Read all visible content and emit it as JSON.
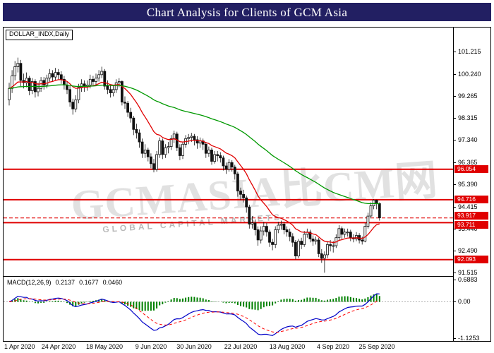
{
  "title": "Chart Analysis for Clients of GCM Asia",
  "watermark": {
    "text": "GCMASIA比CM网",
    "subtext": "GLOBAL CAPITAL MARKETS"
  },
  "colors": {
    "titlebar_bg": "#221f62",
    "level_red": "#e00000",
    "ma_fast_red": "#e00000",
    "ma_slow_green": "#009900",
    "macd_line_blue": "#0000c8",
    "signal_line_red": "#ff0000",
    "histogram_green": "#008000",
    "candle_up_fill": "#ffffff",
    "candle_down_fill": "#111111",
    "candle_border": "#111111"
  },
  "chart_data": {
    "type": "candlestick",
    "symbol_label": "DOLLAR_INDX,Daily",
    "symbol": "DOLLAR_INDX",
    "timeframe": "Daily",
    "ylim": [
      91.37,
      102.27
    ],
    "price_ticks": [
      101.215,
      100.24,
      99.265,
      98.315,
      97.34,
      96.365,
      95.39,
      94.415,
      93.44,
      92.49,
      91.515
    ],
    "price_tick_labels": [
      "101.215",
      "100.240",
      "99.265",
      "98.315",
      "97.340",
      "96.365",
      "95.390",
      "94.415",
      "93.440",
      "92.490",
      "91.515"
    ],
    "levels": [
      {
        "value": 96.054,
        "label": "96.054",
        "style": "solid",
        "role": "resistance"
      },
      {
        "value": 94.716,
        "label": "94.716",
        "style": "solid",
        "role": "resistance"
      },
      {
        "value": 93.917,
        "label": "93.917",
        "style": "dashed",
        "role": "current-price"
      },
      {
        "value": 93.711,
        "label": "93.711",
        "style": "solid",
        "role": "support"
      },
      {
        "value": 92.093,
        "label": "92.093",
        "style": "solid",
        "role": "support"
      }
    ],
    "date_ticks": [
      {
        "label": "1 Apr 2020",
        "bar": 0
      },
      {
        "label": "24 Apr 2020",
        "bar": 17
      },
      {
        "label": "18 May 2020",
        "bar": 33
      },
      {
        "label": "9 Jun 2020",
        "bar": 49
      },
      {
        "label": "30 Jun 2020",
        "bar": 64
      },
      {
        "label": "22 Jul 2020",
        "bar": 80
      },
      {
        "label": "13 Aug 2020",
        "bar": 96
      },
      {
        "label": "4 Sep 2020",
        "bar": 112
      },
      {
        "label": "25 Sep 2020",
        "bar": 127
      }
    ],
    "moving_averages": [
      {
        "name": "ma-fast",
        "period": 16,
        "color_key": "ma_fast_red",
        "style": "solid"
      },
      {
        "name": "ma-slow",
        "period": 75,
        "color_key": "ma_slow_green",
        "style": "solid"
      }
    ],
    "candles": [
      [
        99.1,
        99.85,
        98.85,
        99.6
      ],
      [
        99.6,
        100.4,
        99.4,
        100.15
      ],
      [
        100.15,
        100.8,
        99.95,
        100.55
      ],
      [
        100.55,
        100.95,
        100.3,
        100.7
      ],
      [
        100.7,
        100.85,
        99.7,
        99.95
      ],
      [
        99.95,
        100.25,
        99.6,
        99.85
      ],
      [
        99.85,
        100.3,
        99.65,
        100.05
      ],
      [
        100.05,
        100.15,
        99.3,
        99.5
      ],
      [
        99.5,
        100.05,
        99.35,
        99.9
      ],
      [
        99.9,
        100.0,
        99.2,
        99.45
      ],
      [
        99.45,
        99.85,
        99.25,
        99.6
      ],
      [
        99.6,
        100.1,
        99.45,
        99.95
      ],
      [
        99.95,
        100.1,
        99.55,
        99.75
      ],
      [
        99.75,
        100.2,
        99.6,
        100.05
      ],
      [
        100.05,
        100.45,
        99.9,
        100.25
      ],
      [
        100.25,
        100.4,
        99.9,
        100.1
      ],
      [
        100.1,
        100.5,
        99.95,
        100.3
      ],
      [
        100.3,
        100.45,
        100.0,
        100.2
      ],
      [
        100.2,
        100.35,
        99.8,
        100.0
      ],
      [
        100.0,
        100.15,
        99.55,
        99.75
      ],
      [
        99.75,
        99.9,
        99.35,
        99.55
      ],
      [
        99.55,
        99.7,
        98.8,
        99.0
      ],
      [
        99.0,
        99.15,
        98.45,
        98.7
      ],
      [
        98.7,
        99.3,
        98.55,
        99.1
      ],
      [
        99.1,
        99.8,
        98.95,
        99.65
      ],
      [
        99.65,
        100.0,
        99.45,
        99.8
      ],
      [
        99.8,
        99.95,
        99.45,
        99.7
      ],
      [
        99.7,
        99.95,
        99.5,
        99.75
      ],
      [
        99.75,
        100.2,
        99.6,
        100.0
      ],
      [
        100.0,
        100.15,
        99.7,
        99.9
      ],
      [
        99.9,
        100.25,
        99.75,
        100.05
      ],
      [
        100.05,
        100.4,
        99.9,
        100.2
      ],
      [
        100.2,
        100.55,
        100.05,
        100.35
      ],
      [
        100.35,
        100.45,
        99.55,
        99.7
      ],
      [
        99.7,
        99.95,
        99.35,
        99.55
      ],
      [
        99.55,
        99.75,
        99.2,
        99.4
      ],
      [
        99.4,
        99.75,
        99.25,
        99.55
      ],
      [
        99.55,
        100.0,
        99.4,
        99.85
      ],
      [
        99.85,
        100.05,
        99.65,
        99.9
      ],
      [
        99.9,
        99.95,
        98.85,
        99.0
      ],
      [
        99.0,
        99.25,
        98.7,
        98.95
      ],
      [
        98.95,
        99.05,
        98.35,
        98.55
      ],
      [
        98.55,
        98.75,
        98.1,
        98.3
      ],
      [
        98.3,
        98.4,
        97.55,
        97.8
      ],
      [
        97.8,
        98.05,
        97.4,
        97.65
      ],
      [
        97.65,
        97.8,
        97.0,
        97.25
      ],
      [
        97.25,
        97.4,
        96.55,
        96.75
      ],
      [
        96.75,
        97.15,
        96.55,
        96.9
      ],
      [
        96.9,
        97.0,
        96.4,
        96.6
      ],
      [
        96.6,
        96.75,
        96.1,
        96.3
      ],
      [
        96.3,
        96.5,
        95.92,
        96.05
      ],
      [
        96.05,
        96.85,
        95.95,
        96.7
      ],
      [
        96.7,
        97.45,
        96.55,
        97.3
      ],
      [
        97.3,
        97.4,
        96.5,
        96.7
      ],
      [
        96.7,
        97.15,
        96.55,
        97.0
      ],
      [
        97.0,
        97.25,
        96.75,
        97.05
      ],
      [
        97.05,
        97.55,
        96.9,
        97.4
      ],
      [
        97.4,
        97.75,
        97.2,
        97.6
      ],
      [
        97.6,
        97.7,
        96.85,
        97.0
      ],
      [
        97.0,
        97.15,
        96.45,
        96.65
      ],
      [
        96.65,
        97.25,
        96.5,
        97.15
      ],
      [
        97.15,
        97.55,
        97.0,
        97.4
      ],
      [
        97.4,
        97.6,
        97.15,
        97.45
      ],
      [
        97.45,
        97.65,
        97.25,
        97.5
      ],
      [
        97.5,
        97.6,
        97.1,
        97.35
      ],
      [
        97.35,
        97.5,
        96.95,
        97.2
      ],
      [
        97.2,
        97.45,
        97.0,
        97.3
      ],
      [
        97.3,
        97.4,
        96.9,
        97.15
      ],
      [
        97.15,
        97.25,
        96.55,
        96.75
      ],
      [
        96.75,
        97.05,
        96.6,
        96.9
      ],
      [
        96.9,
        97.0,
        96.25,
        96.4
      ],
      [
        96.4,
        96.85,
        96.3,
        96.7
      ],
      [
        96.7,
        96.85,
        96.4,
        96.65
      ],
      [
        96.65,
        96.8,
        96.35,
        96.55
      ],
      [
        96.55,
        96.65,
        96.0,
        96.2
      ],
      [
        96.2,
        96.35,
        95.85,
        96.05
      ],
      [
        96.05,
        96.5,
        95.95,
        96.35
      ],
      [
        96.35,
        96.45,
        95.95,
        96.15
      ],
      [
        96.15,
        96.25,
        95.6,
        95.85
      ],
      [
        95.85,
        95.95,
        94.85,
        95.1
      ],
      [
        95.1,
        95.25,
        94.7,
        94.95
      ],
      [
        94.95,
        95.15,
        94.6,
        94.8
      ],
      [
        94.8,
        94.9,
        94.15,
        94.4
      ],
      [
        94.4,
        94.5,
        93.45,
        93.65
      ],
      [
        93.65,
        94.0,
        93.45,
        93.7
      ],
      [
        93.7,
        93.85,
        93.15,
        93.4
      ],
      [
        93.4,
        93.55,
        92.7,
        92.95
      ],
      [
        92.95,
        93.55,
        92.8,
        93.35
      ],
      [
        93.35,
        93.75,
        93.15,
        93.55
      ],
      [
        93.55,
        93.7,
        93.1,
        93.3
      ],
      [
        93.3,
        93.4,
        92.65,
        92.85
      ],
      [
        92.85,
        93.0,
        92.5,
        92.75
      ],
      [
        92.75,
        93.55,
        92.6,
        93.4
      ],
      [
        93.4,
        93.75,
        93.25,
        93.6
      ],
      [
        93.6,
        93.8,
        93.4,
        93.65
      ],
      [
        93.65,
        93.75,
        93.2,
        93.4
      ],
      [
        93.4,
        93.55,
        93.1,
        93.3
      ],
      [
        93.3,
        93.45,
        92.9,
        93.1
      ],
      [
        93.1,
        93.25,
        92.65,
        92.85
      ],
      [
        92.85,
        92.95,
        92.1,
        92.25
      ],
      [
        92.25,
        93.0,
        92.15,
        92.9
      ],
      [
        92.9,
        93.05,
        92.55,
        92.75
      ],
      [
        92.75,
        93.35,
        92.65,
        93.2
      ],
      [
        93.2,
        93.45,
        93.05,
        93.3
      ],
      [
        93.3,
        93.4,
        92.85,
        93.0
      ],
      [
        93.0,
        93.15,
        92.7,
        92.9
      ],
      [
        92.9,
        93.1,
        92.75,
        92.95
      ],
      [
        92.95,
        93.05,
        92.2,
        92.35
      ],
      [
        92.35,
        92.55,
        91.95,
        92.15
      ],
      [
        92.15,
        92.45,
        91.52,
        92.3
      ],
      [
        92.3,
        92.9,
        92.15,
        92.75
      ],
      [
        92.75,
        92.95,
        92.45,
        92.7
      ],
      [
        92.7,
        92.9,
        92.4,
        92.7
      ],
      [
        92.7,
        93.2,
        92.6,
        93.05
      ],
      [
        93.05,
        93.6,
        92.95,
        93.45
      ],
      [
        93.45,
        93.55,
        93.0,
        93.2
      ],
      [
        93.2,
        93.45,
        93.05,
        93.3
      ],
      [
        93.3,
        93.45,
        93.1,
        93.3
      ],
      [
        93.3,
        93.4,
        92.9,
        93.05
      ],
      [
        93.05,
        93.2,
        92.85,
        93.0
      ],
      [
        93.0,
        93.3,
        92.9,
        93.15
      ],
      [
        93.15,
        93.25,
        92.8,
        92.95
      ],
      [
        92.95,
        93.1,
        92.75,
        92.9
      ],
      [
        92.9,
        93.7,
        92.85,
        93.55
      ],
      [
        93.55,
        94.15,
        93.45,
        94.0
      ],
      [
        94.0,
        94.6,
        93.9,
        94.45
      ],
      [
        94.45,
        94.74,
        94.3,
        94.7
      ],
      [
        94.7,
        94.72,
        94.3,
        94.55
      ],
      [
        94.55,
        94.6,
        93.8,
        93.92
      ]
    ],
    "macd": {
      "label": "MACD(12,26,9)",
      "params": [
        12,
        26,
        9
      ],
      "values": {
        "macd": "0.2137",
        "signal": "0.1677",
        "histogram": "0.0460"
      },
      "ylim": [
        -1.22,
        0.78
      ],
      "ticks": [
        {
          "value": 0.6883,
          "label": "0.6883"
        },
        {
          "value": 0.0,
          "label": "0.00"
        },
        {
          "value": -1.1253,
          "label": "-1.1253"
        }
      ]
    }
  }
}
